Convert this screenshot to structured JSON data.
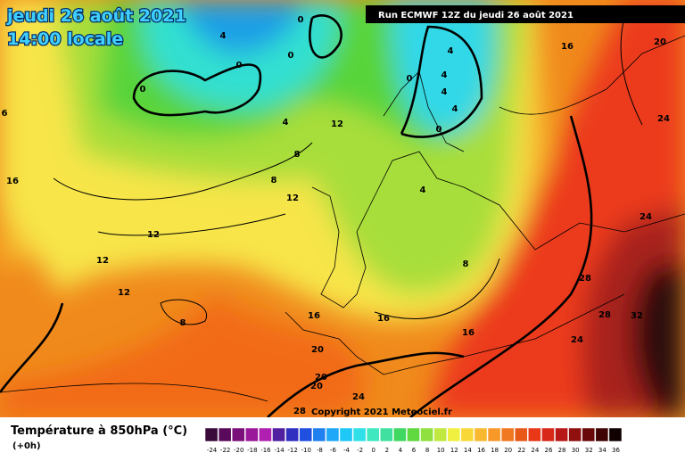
{
  "header": {
    "date": "jeudi 26 août 2021",
    "time": "14:00 locale",
    "run": "Run ECMWF 12Z du jeudi 26 août 2021"
  },
  "footer": {
    "copyright": "Copyright 2021 Meteociel.fr"
  },
  "legend": {
    "title": "Température à 850hPa (°C)",
    "subtitle": "(+0h)",
    "labels": [
      "-24",
      "-22",
      "-20",
      "-18",
      "-16",
      "-14",
      "-12",
      "-10",
      "-8",
      "-6",
      "-4",
      "-2",
      "0",
      "2",
      "4",
      "6",
      "8",
      "10",
      "12",
      "14",
      "16",
      "18",
      "20",
      "22",
      "24",
      "26",
      "28",
      "30",
      "32",
      "34",
      "36"
    ],
    "colors": [
      "#3a0a3a",
      "#5a0a5a",
      "#7a107a",
      "#9a189a",
      "#b020b0",
      "#5020a0",
      "#3030c0",
      "#2050e0",
      "#2080f0",
      "#20a8f8",
      "#20c8f8",
      "#30e0e8",
      "#40e8c0",
      "#40e0a0",
      "#40d860",
      "#60d840",
      "#90e040",
      "#c0e840",
      "#f0f040",
      "#f8d838",
      "#f8b830",
      "#f89828",
      "#f07820",
      "#e85818",
      "#e83818",
      "#d82818",
      "#b81818",
      "#901010",
      "#680808",
      "#400404",
      "#100000"
    ]
  },
  "map_labels": [
    "0",
    "4",
    "0",
    "0",
    "0",
    "4",
    "8",
    "8",
    "12",
    "12",
    "12",
    "12",
    "12",
    "8",
    "16",
    "16",
    "16",
    "16",
    "20",
    "20",
    "20",
    "24",
    "28",
    "8",
    "4",
    "0",
    "4",
    "4",
    "4",
    "4",
    "0",
    "16",
    "20",
    "24",
    "24",
    "28",
    "28",
    "32",
    "24",
    "6"
  ]
}
